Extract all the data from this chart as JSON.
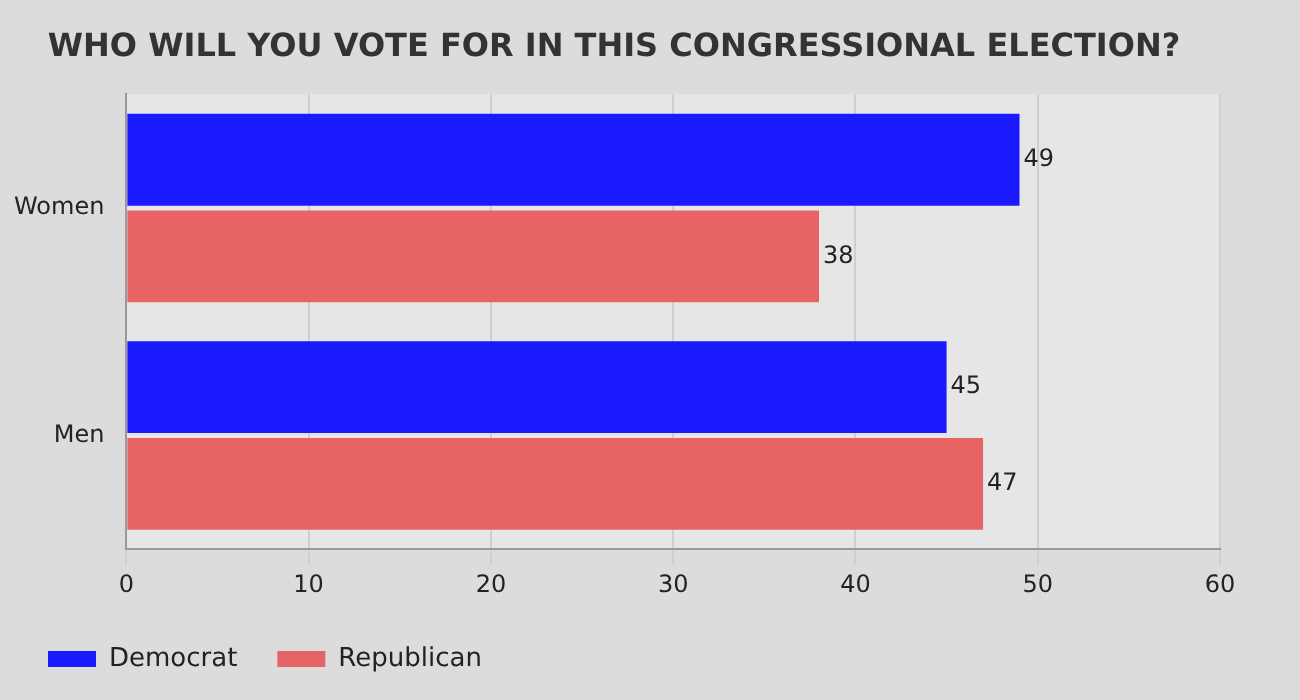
{
  "chart_data": {
    "type": "bar",
    "orientation": "horizontal",
    "title": "WHO WILL YOU VOTE FOR IN THIS CONGRESSIONAL ELECTION?",
    "categories": [
      "Women",
      "Men"
    ],
    "series": [
      {
        "name": "Democrat",
        "color": "#1a1aff",
        "values": [
          49,
          45
        ]
      },
      {
        "name": "Republican",
        "color": "#e86464",
        "values": [
          38,
          47
        ]
      }
    ],
    "xlim": [
      0,
      60
    ],
    "xticks": [
      0,
      10,
      20,
      30,
      40,
      50,
      60
    ],
    "grid": "x",
    "legend": "bottom left",
    "data_labels": true
  }
}
